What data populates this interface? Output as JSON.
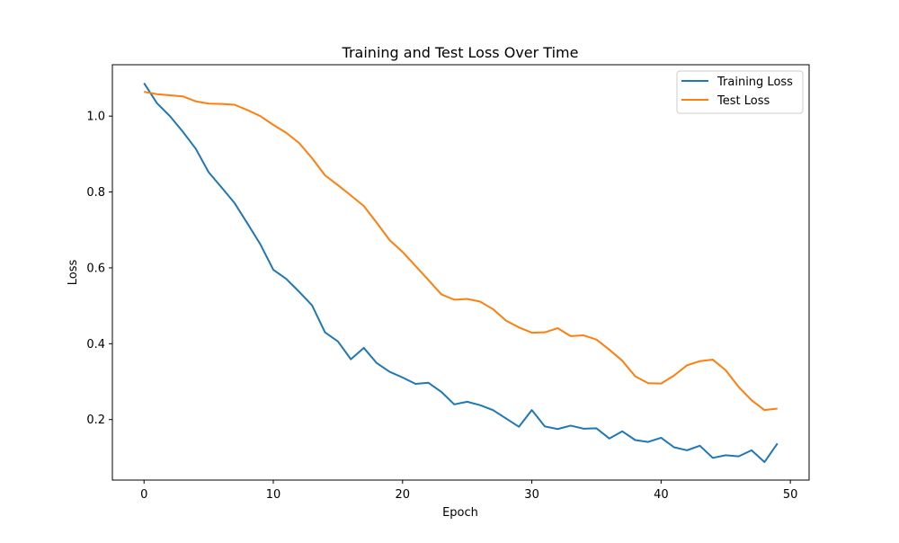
{
  "chart_data": {
    "type": "line",
    "title": "Training and Test Loss Over Time",
    "xlabel": "Epoch",
    "ylabel": "Loss",
    "xlim": [
      -2.45,
      51.45
    ],
    "ylim": [
      0.0405,
      1.1355
    ],
    "xticks": [
      0,
      10,
      20,
      30,
      40,
      50
    ],
    "yticks": [
      0.2,
      0.4,
      0.6,
      0.8,
      1.0
    ],
    "xtick_labels": [
      "0",
      "10",
      "20",
      "30",
      "40",
      "50"
    ],
    "ytick_labels": [
      "0.2",
      "0.4",
      "0.6",
      "0.8",
      "1.0"
    ],
    "grid": false,
    "legend_position": "top-right",
    "x": [
      0,
      1,
      2,
      3,
      4,
      5,
      6,
      7,
      8,
      9,
      10,
      11,
      12,
      13,
      14,
      15,
      16,
      17,
      18,
      19,
      20,
      21,
      22,
      23,
      24,
      25,
      26,
      27,
      28,
      29,
      30,
      31,
      32,
      33,
      34,
      35,
      36,
      37,
      38,
      39,
      40,
      41,
      42,
      43,
      44,
      45,
      46,
      47,
      48,
      49
    ],
    "series": [
      {
        "name": "Training Loss",
        "color": "#1f77b4",
        "values": [
          1.087,
          1.034,
          1.0,
          0.959,
          0.914,
          0.852,
          0.812,
          0.771,
          0.717,
          0.662,
          0.595,
          0.571,
          0.537,
          0.501,
          0.43,
          0.406,
          0.359,
          0.389,
          0.349,
          0.326,
          0.311,
          0.294,
          0.297,
          0.273,
          0.24,
          0.247,
          0.238,
          0.225,
          0.203,
          0.181,
          0.225,
          0.182,
          0.175,
          0.184,
          0.176,
          0.177,
          0.15,
          0.169,
          0.146,
          0.141,
          0.152,
          0.127,
          0.119,
          0.131,
          0.099,
          0.106,
          0.103,
          0.119,
          0.088,
          0.137
        ]
      },
      {
        "name": "Test Loss",
        "color": "#ff7f0e",
        "values": [
          1.064,
          1.058,
          1.055,
          1.052,
          1.039,
          1.033,
          1.032,
          1.03,
          1.016,
          1.0,
          0.977,
          0.956,
          0.929,
          0.889,
          0.844,
          0.818,
          0.791,
          0.763,
          0.719,
          0.673,
          0.642,
          0.605,
          0.568,
          0.53,
          0.516,
          0.518,
          0.511,
          0.491,
          0.461,
          0.443,
          0.429,
          0.43,
          0.441,
          0.42,
          0.422,
          0.411,
          0.384,
          0.355,
          0.314,
          0.296,
          0.295,
          0.316,
          0.343,
          0.354,
          0.358,
          0.33,
          0.286,
          0.251,
          0.225,
          0.229
        ]
      }
    ]
  }
}
